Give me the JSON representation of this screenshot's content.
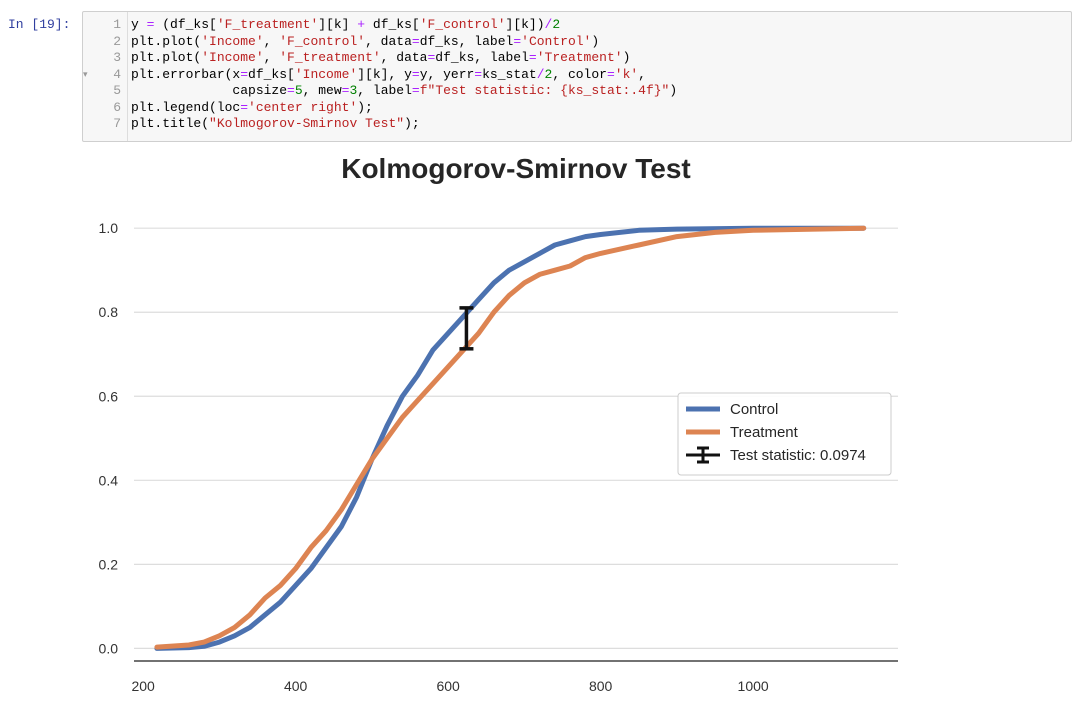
{
  "cell": {
    "prompt": "In [19]:",
    "lines": [
      {
        "num": "1",
        "code": "y = (df_ks['F_treatment'][k] + df_ks['F_control'][k])/2"
      },
      {
        "num": "2",
        "code": "plt.plot('Income', 'F_control', data=df_ks, label='Control')"
      },
      {
        "num": "3",
        "code": "plt.plot('Income', 'F_treatment', data=df_ks, label='Treatment')"
      },
      {
        "num": "4",
        "code": "plt.errorbar(x=df_ks['Income'][k], y=y, yerr=ks_stat/2, color='k',"
      },
      {
        "num": "5",
        "code": "             capsize=5, mew=3, label=f\"Test statistic: {ks_stat:.4f}\")"
      },
      {
        "num": "6",
        "code": "plt.legend(loc='center right');"
      },
      {
        "num": "7",
        "code": "plt.title(\"Kolmogorov-Smirnov Test\");"
      }
    ]
  },
  "chart_data": {
    "type": "line",
    "title": "Kolmogorov-Smirnov Test",
    "xlabel": "",
    "ylabel": "",
    "xlim": [
      188,
      1190
    ],
    "ylim": [
      -0.03,
      1.06
    ],
    "xticks": [
      200,
      400,
      600,
      800,
      1000
    ],
    "yticks": [
      0.0,
      0.2,
      0.4,
      0.6,
      0.8,
      1.0
    ],
    "xtick_labels": [
      "200",
      "400",
      "600",
      "800",
      "1000"
    ],
    "ytick_labels": [
      "0.0",
      "0.2",
      "0.4",
      "0.6",
      "0.8",
      "1.0"
    ],
    "grid": "horizontal",
    "legend_position": "center-right",
    "series": [
      {
        "name": "Control",
        "color": "#4c72b0",
        "points": [
          [
            218,
            0
          ],
          [
            260,
            0.002
          ],
          [
            280,
            0.005
          ],
          [
            300,
            0.015
          ],
          [
            320,
            0.03
          ],
          [
            340,
            0.05
          ],
          [
            360,
            0.08
          ],
          [
            380,
            0.11
          ],
          [
            400,
            0.15
          ],
          [
            420,
            0.19
          ],
          [
            440,
            0.24
          ],
          [
            460,
            0.29
          ],
          [
            480,
            0.36
          ],
          [
            500,
            0.45
          ],
          [
            520,
            0.53
          ],
          [
            540,
            0.6
          ],
          [
            560,
            0.65
          ],
          [
            580,
            0.71
          ],
          [
            600,
            0.75
          ],
          [
            620,
            0.79
          ],
          [
            640,
            0.83
          ],
          [
            660,
            0.87
          ],
          [
            680,
            0.9
          ],
          [
            700,
            0.92
          ],
          [
            720,
            0.94
          ],
          [
            740,
            0.96
          ],
          [
            760,
            0.97
          ],
          [
            780,
            0.98
          ],
          [
            800,
            0.985
          ],
          [
            850,
            0.995
          ],
          [
            900,
            0.998
          ],
          [
            1000,
            1.0
          ],
          [
            1145,
            1.0
          ]
        ]
      },
      {
        "name": "Treatment",
        "color": "#dd8452",
        "points": [
          [
            218,
            0.003
          ],
          [
            260,
            0.008
          ],
          [
            280,
            0.015
          ],
          [
            300,
            0.03
          ],
          [
            320,
            0.05
          ],
          [
            340,
            0.08
          ],
          [
            360,
            0.12
          ],
          [
            380,
            0.15
          ],
          [
            400,
            0.19
          ],
          [
            420,
            0.24
          ],
          [
            440,
            0.28
          ],
          [
            460,
            0.33
          ],
          [
            480,
            0.39
          ],
          [
            500,
            0.45
          ],
          [
            520,
            0.5
          ],
          [
            540,
            0.55
          ],
          [
            560,
            0.59
          ],
          [
            580,
            0.63
          ],
          [
            600,
            0.67
          ],
          [
            620,
            0.71
          ],
          [
            640,
            0.75
          ],
          [
            660,
            0.8
          ],
          [
            680,
            0.84
          ],
          [
            700,
            0.87
          ],
          [
            720,
            0.89
          ],
          [
            740,
            0.9
          ],
          [
            760,
            0.91
          ],
          [
            780,
            0.93
          ],
          [
            800,
            0.94
          ],
          [
            850,
            0.96
          ],
          [
            900,
            0.98
          ],
          [
            950,
            0.99
          ],
          [
            1000,
            0.995
          ],
          [
            1145,
            1.0
          ]
        ]
      }
    ],
    "errorbar": {
      "label": "Test statistic: 0.0974",
      "x": 624,
      "y": 0.7617,
      "yerr": 0.0487,
      "color": "#111111"
    }
  }
}
